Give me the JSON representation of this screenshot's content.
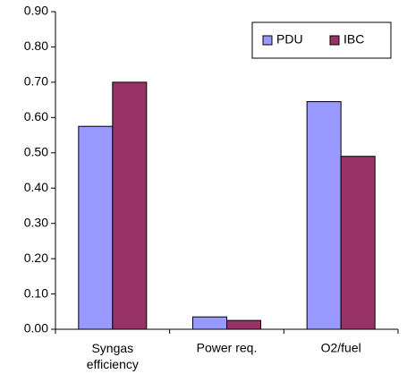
{
  "chart_data": {
    "type": "bar",
    "categories": [
      "Syngas efficiency",
      "Power req.",
      "O2/fuel"
    ],
    "series": [
      {
        "name": "PDU",
        "color": "#9999ff",
        "values": [
          0.575,
          0.035,
          0.645
        ]
      },
      {
        "name": "IBC",
        "color": "#993366",
        "values": [
          0.7,
          0.025,
          0.49
        ]
      }
    ],
    "ylim": [
      0,
      0.9
    ],
    "yticks": [
      {
        "value": 0,
        "label": "0.00"
      },
      {
        "value": 0.1,
        "label": "0.10"
      },
      {
        "value": 0.2,
        "label": "0.20"
      },
      {
        "value": 0.3,
        "label": "0.30"
      },
      {
        "value": 0.4,
        "label": "0.40"
      },
      {
        "value": 0.5,
        "label": "0.50"
      },
      {
        "value": 0.6,
        "label": "0.60"
      },
      {
        "value": 0.7,
        "label": "0.70"
      },
      {
        "value": 0.8,
        "label": "0.80"
      },
      {
        "value": 0.9,
        "label": "0.90"
      }
    ],
    "legend": "upper right"
  }
}
